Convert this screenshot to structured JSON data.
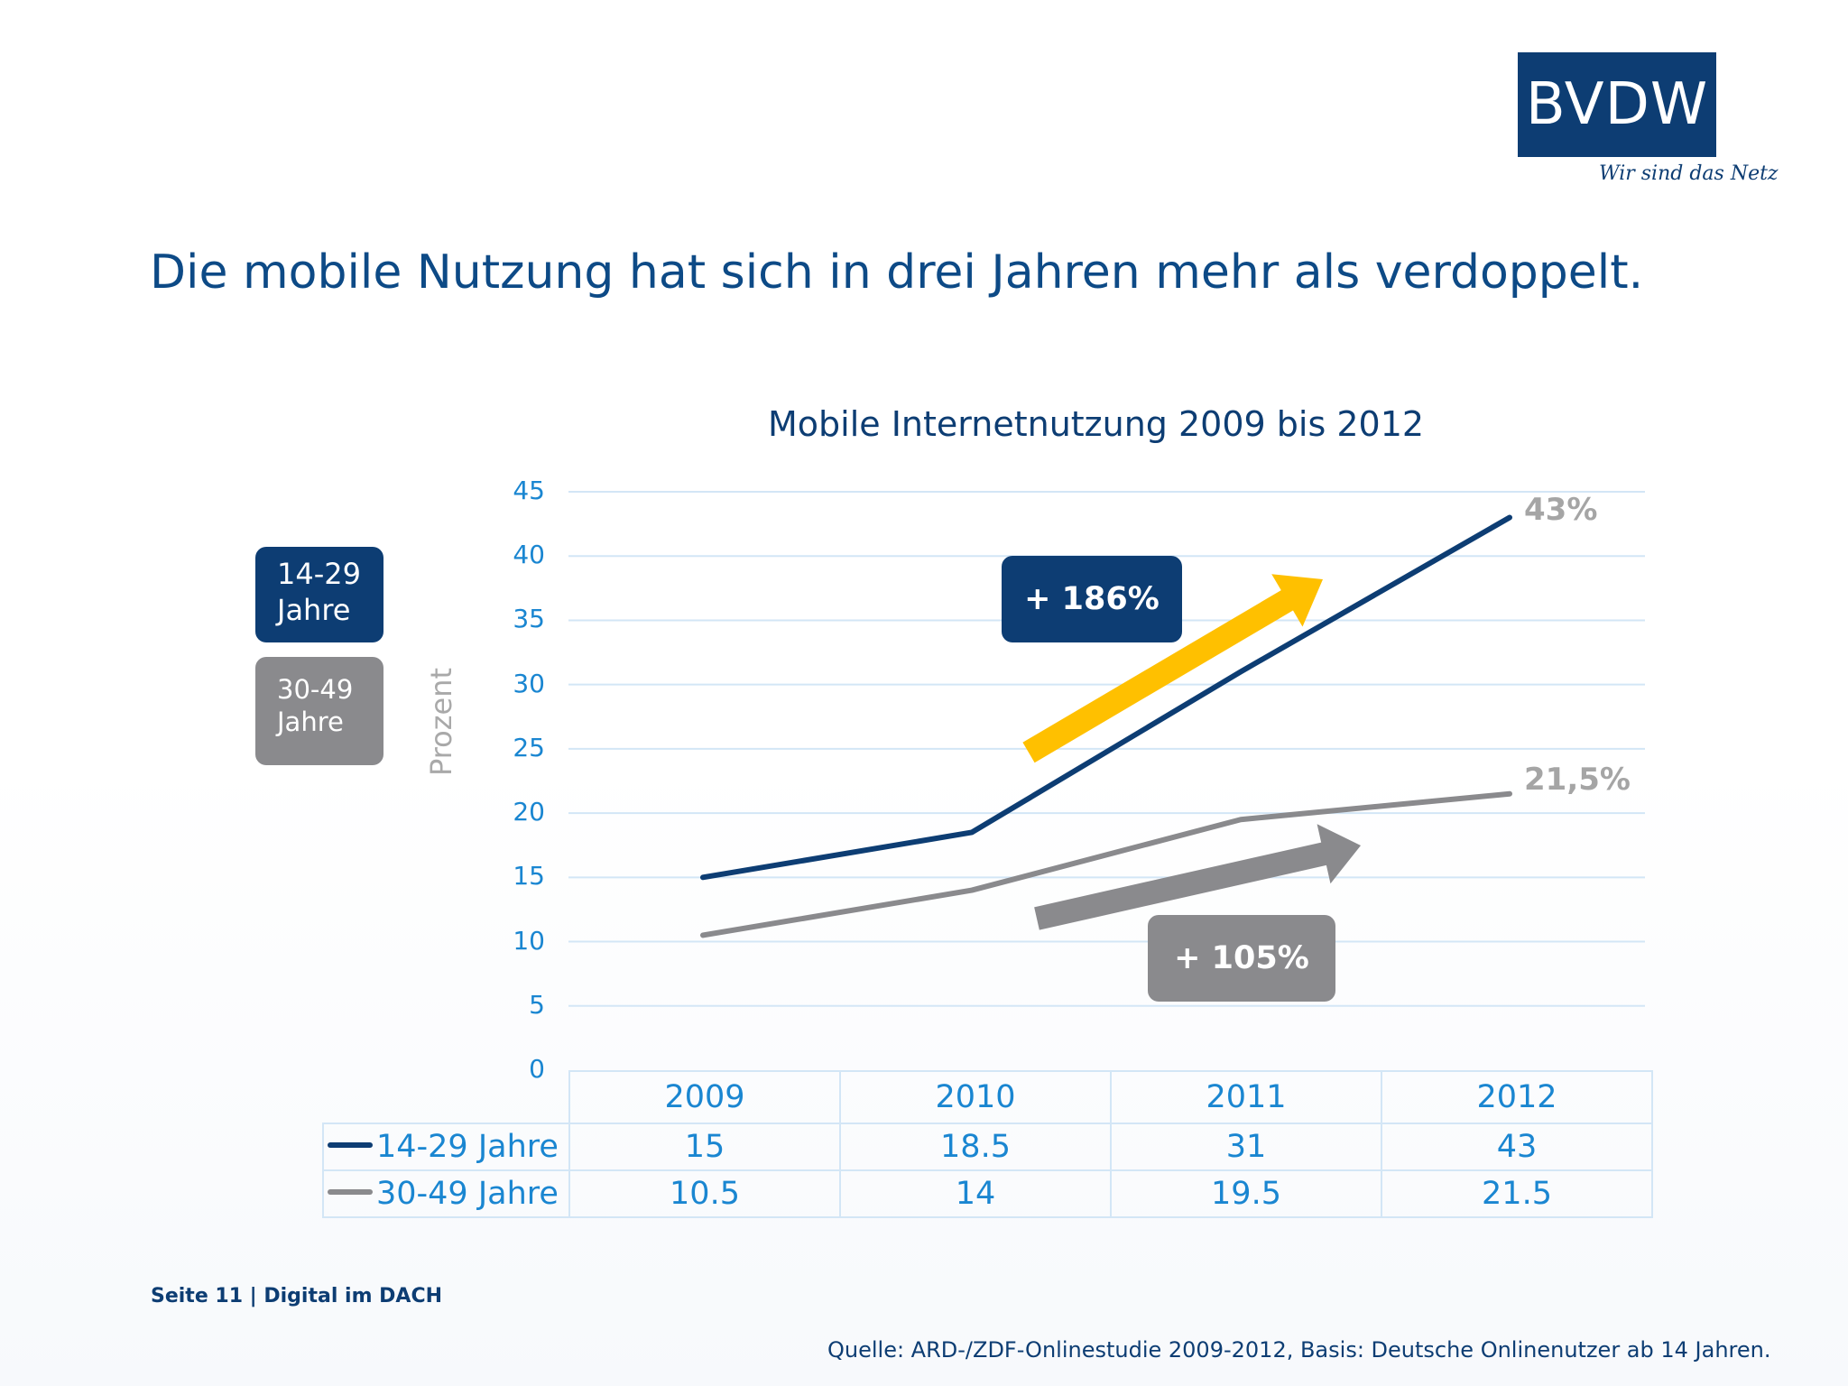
{
  "logo": {
    "name": "BVDW",
    "tagline": "Wir sind das Netz"
  },
  "headline": "Die mobile Nutzung hat sich in drei Jahren mehr als verdoppelt.",
  "legend": {
    "young": "14-29\nJahre",
    "old": "30-49\nJahre"
  },
  "growth": {
    "young": "+ 186%",
    "old": "+ 105%"
  },
  "end_labels": {
    "young": "43%",
    "old": "21,5%"
  },
  "footer": {
    "page": "Seite 11 | Digital im DACH",
    "source": "Quelle: ARD-/ZDF-Onlinestudie 2009-2012, Basis: Deutsche Onlinenutzer ab 14 Jahren."
  },
  "colors": {
    "young": "#0d3d73",
    "old": "#8a8a8d",
    "arrow_young": "#ffc000",
    "arrow_old": "#8a8a8d",
    "grid": "#d3e6f6",
    "tick": "#1a86d1"
  },
  "chart_data": {
    "type": "line",
    "title": "Mobile Internetnutzung 2009 bis 2012",
    "xlabel": "",
    "ylabel": "Prozent",
    "x": [
      "2009",
      "2010",
      "2011",
      "2012"
    ],
    "series": [
      {
        "name": "14-29 Jahre",
        "values": [
          15,
          18.5,
          31,
          43
        ],
        "table_values": [
          "15",
          "18.5",
          "31",
          "43"
        ]
      },
      {
        "name": "30-49 Jahre",
        "values": [
          10.5,
          14,
          19.5,
          21.5
        ],
        "table_values": [
          "10.5",
          "14",
          "19.5",
          "21.5"
        ]
      }
    ],
    "ylim": [
      0,
      45
    ],
    "yticks": [
      0,
      5,
      10,
      15,
      20,
      25,
      30,
      35,
      40,
      45
    ],
    "grid": true,
    "legend": "left",
    "data_table": true
  }
}
